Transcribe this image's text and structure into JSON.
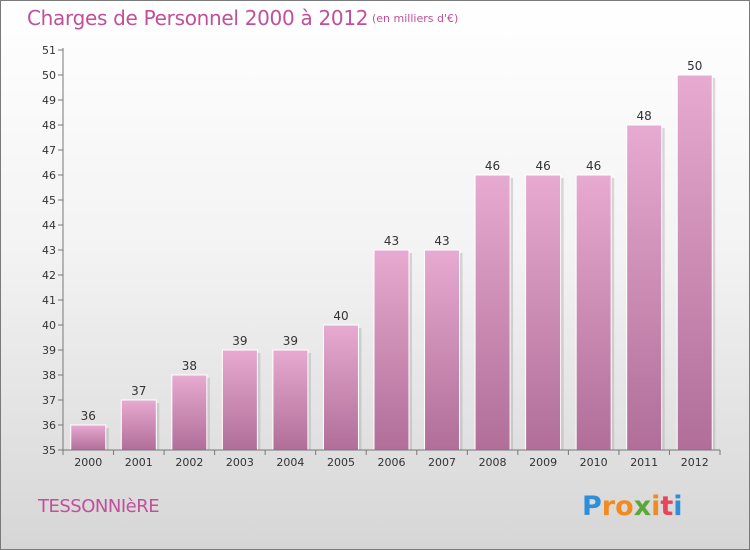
{
  "chart_data": {
    "type": "bar",
    "title": "Charges de Personnel 2000 à 2012",
    "subtitle": "(en milliers d'€)",
    "xlabel": "",
    "ylabel": "",
    "categories": [
      "2000",
      "2001",
      "2002",
      "2003",
      "2004",
      "2005",
      "2006",
      "2007",
      "2008",
      "2009",
      "2010",
      "2011",
      "2012"
    ],
    "values": [
      36,
      37,
      38,
      39,
      39,
      40,
      43,
      43,
      46,
      46,
      46,
      48,
      50
    ],
    "data_labels": [
      "36",
      "37",
      "38",
      "39",
      "39",
      "40",
      "43",
      "43",
      "46",
      "46",
      "46",
      "48",
      "50"
    ],
    "ylim": [
      35,
      51
    ],
    "yticks": [
      "35",
      "36",
      "37",
      "38",
      "39",
      "40",
      "41",
      "42",
      "43",
      "44",
      "45",
      "46",
      "47",
      "48",
      "49",
      "50",
      "51"
    ],
    "grid": false,
    "bar_color": "#d48bbb"
  },
  "footer": {
    "place_name": "TESSONNIèRE",
    "brand": "Proxiti"
  }
}
